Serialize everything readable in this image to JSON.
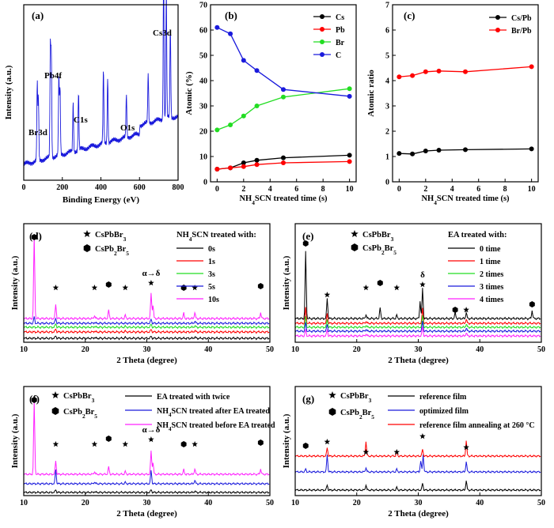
{
  "chart_data": [
    {
      "panel": "(a)",
      "type": "line",
      "xlabel": "Binding Energy (eV)",
      "ylabel": "Intensity (a.u.)",
      "xlim": [
        0,
        800
      ],
      "xticks": [
        0,
        200,
        400,
        600,
        800
      ],
      "line_color": "#1a1adc",
      "annotations": [
        {
          "text": "Cs3d",
          "x": 730
        },
        {
          "text": "Pb4f",
          "x": 140
        },
        {
          "text": "C1s",
          "x": 285
        },
        {
          "text": "O1s",
          "x": 532
        },
        {
          "text": "Br3d",
          "x": 70
        }
      ],
      "peaks": [
        {
          "x": 70,
          "h": 0.44
        },
        {
          "x": 76,
          "h": 0.36
        },
        {
          "x": 138,
          "h": 0.62
        },
        {
          "x": 143,
          "h": 0.58
        },
        {
          "x": 182,
          "h": 0.44
        },
        {
          "x": 188,
          "h": 0.38
        },
        {
          "x": 256,
          "h": 0.28
        },
        {
          "x": 284,
          "h": 0.33
        },
        {
          "x": 413,
          "h": 0.42
        },
        {
          "x": 435,
          "h": 0.38
        },
        {
          "x": 532,
          "h": 0.24
        },
        {
          "x": 645,
          "h": 0.28
        },
        {
          "x": 725,
          "h": 0.84
        },
        {
          "x": 739,
          "h": 0.72
        },
        {
          "x": 760,
          "h": 0.52
        }
      ]
    },
    {
      "panel": "(b)",
      "type": "line",
      "xlabel": "NH₄SCN treated time (s)",
      "ylabel": "Atomic (%)",
      "xlim": [
        -0.5,
        10.5
      ],
      "ylim": [
        0,
        70
      ],
      "xticks": [
        0,
        2,
        4,
        6,
        8,
        10
      ],
      "yticks": [
        0,
        10,
        20,
        30,
        40,
        50,
        60,
        70
      ],
      "x": [
        0,
        1,
        2,
        3,
        5,
        10
      ],
      "series": [
        {
          "name": "Cs",
          "color": "#000000",
          "values": [
            5.0,
            5.5,
            7.5,
            8.5,
            9.5,
            10.5
          ]
        },
        {
          "name": "Pb",
          "color": "#ff0000",
          "values": [
            5.0,
            5.5,
            6.0,
            6.8,
            7.5,
            8.0
          ]
        },
        {
          "name": "Br",
          "color": "#22dd22",
          "values": [
            20.5,
            22.5,
            26.0,
            30.0,
            33.5,
            36.8
          ]
        },
        {
          "name": "C",
          "color": "#1a1adc",
          "values": [
            61.0,
            58.5,
            48.0,
            44.0,
            36.5,
            33.8
          ]
        }
      ],
      "legend": "top-right"
    },
    {
      "panel": "(c)",
      "type": "line",
      "xlabel": "NH₄SCN treated time (s)",
      "ylabel": "Atomic ratio",
      "xlim": [
        -0.5,
        10.5
      ],
      "ylim": [
        0,
        7
      ],
      "xticks": [
        0,
        2,
        4,
        6,
        8,
        10
      ],
      "yticks": [
        0,
        1,
        2,
        3,
        4,
        5,
        6,
        7
      ],
      "x": [
        0,
        1,
        2,
        3,
        5,
        10
      ],
      "series": [
        {
          "name": "Cs/Pb",
          "color": "#000000",
          "values": [
            1.12,
            1.1,
            1.22,
            1.25,
            1.27,
            1.3
          ]
        },
        {
          "name": "Br/Pb",
          "color": "#ff0000",
          "values": [
            4.15,
            4.2,
            4.35,
            4.38,
            4.35,
            4.55
          ]
        }
      ],
      "legend": "top-right"
    },
    {
      "panel": "(d)",
      "type": "line",
      "xlabel": "2 Theta (degree)",
      "ylabel": "Intensity (a.u.)",
      "xlim": [
        10,
        50
      ],
      "xticks": [
        10,
        20,
        30,
        40,
        50
      ],
      "legend_title": "NH₄SCN treated with:",
      "phase_labels": [
        "CsPbBr₃",
        "CsPb₂Br₅"
      ],
      "marker_annotations": [
        {
          "x": 11.7,
          "sym": "hex"
        },
        {
          "x": 15.2,
          "sym": "star"
        },
        {
          "x": 21.5,
          "sym": "star"
        },
        {
          "x": 23.8,
          "sym": "hex"
        },
        {
          "x": 26.5,
          "sym": "star"
        },
        {
          "x": 30.7,
          "sym": "star",
          "text": "α→δ"
        },
        {
          "x": 36.0,
          "sym": "hex"
        },
        {
          "x": 37.8,
          "sym": "star"
        },
        {
          "x": 48.5,
          "sym": "hex"
        }
      ],
      "series": [
        {
          "name": "0s",
          "color": "#000000",
          "peaks": [
            [
              15.2,
              0.25
            ],
            [
              21.5,
              0.1
            ],
            [
              26.5,
              0.08
            ],
            [
              30.7,
              0.2
            ],
            [
              37.8,
              0.15
            ]
          ]
        },
        {
          "name": "1s",
          "color": "#ff0000",
          "peaks": [
            [
              15.2,
              0.3
            ],
            [
              21.5,
              0.1
            ],
            [
              26.5,
              0.08
            ],
            [
              30.7,
              0.25
            ],
            [
              37.8,
              0.15
            ]
          ]
        },
        {
          "name": "3s",
          "color": "#22dd22",
          "peaks": [
            [
              15.2,
              0.35
            ],
            [
              21.5,
              0.1
            ],
            [
              26.5,
              0.08
            ],
            [
              30.7,
              0.3
            ],
            [
              37.8,
              0.15
            ]
          ]
        },
        {
          "name": "5s",
          "color": "#1a1adc",
          "peaks": [
            [
              11.7,
              0.6
            ],
            [
              15.2,
              0.5
            ],
            [
              21.5,
              0.1
            ],
            [
              30.7,
              0.4
            ],
            [
              37.8,
              0.2
            ]
          ]
        },
        {
          "name": "10s",
          "color": "#ff22ff",
          "peaks": [
            [
              11.7,
              8.0
            ],
            [
              15.2,
              1.4
            ],
            [
              21.5,
              0.3
            ],
            [
              23.8,
              0.8
            ],
            [
              26.5,
              0.3
            ],
            [
              30.7,
              2.5
            ],
            [
              31.0,
              1.3
            ],
            [
              36.0,
              0.5
            ],
            [
              37.8,
              0.6
            ],
            [
              48.5,
              0.6
            ]
          ]
        }
      ]
    },
    {
      "panel": "(e)",
      "type": "line",
      "xlabel": "2 Theta (degree)",
      "ylabel": "Intensity (a.u.)",
      "xlim": [
        10,
        50
      ],
      "xticks": [
        10,
        20,
        30,
        40,
        50
      ],
      "legend_title": "EA treated with:",
      "phase_labels": [
        "CsPbBr₃",
        "CsPb₂Br₅"
      ],
      "marker_annotations": [
        {
          "x": 11.7,
          "sym": "hex"
        },
        {
          "x": 15.2,
          "sym": "star"
        },
        {
          "x": 21.5,
          "sym": "star"
        },
        {
          "x": 23.8,
          "sym": "hex"
        },
        {
          "x": 26.5,
          "sym": "star"
        },
        {
          "x": 30.7,
          "sym": "star",
          "text": "δ"
        },
        {
          "x": 36.0,
          "sym": "hex"
        },
        {
          "x": 37.8,
          "sym": "star"
        },
        {
          "x": 48.5,
          "sym": "hex"
        }
      ],
      "series": [
        {
          "name": "0 time",
          "color": "#000000",
          "peaks": [
            [
              11.7,
              6.5
            ],
            [
              15.2,
              2.0
            ],
            [
              21.5,
              0.4
            ],
            [
              23.8,
              1.0
            ],
            [
              26.5,
              0.3
            ],
            [
              30.3,
              1.7
            ],
            [
              30.7,
              3.0
            ],
            [
              36.0,
              0.6
            ],
            [
              37.8,
              0.6
            ],
            [
              48.5,
              0.8
            ]
          ]
        },
        {
          "name": "1 time",
          "color": "#ff0000",
          "peaks": [
            [
              11.7,
              1.5
            ],
            [
              15.2,
              1.0
            ],
            [
              21.5,
              0.2
            ],
            [
              30.7,
              1.5
            ],
            [
              37.8,
              0.4
            ]
          ]
        },
        {
          "name": "2 times",
          "color": "#22dd22",
          "peaks": [
            [
              11.7,
              1.0
            ],
            [
              15.2,
              0.8
            ],
            [
              21.5,
              0.2
            ],
            [
              30.7,
              1.2
            ],
            [
              37.8,
              0.3
            ]
          ]
        },
        {
          "name": "3 times",
          "color": "#1a1adc",
          "peaks": [
            [
              11.7,
              0.8
            ],
            [
              15.2,
              0.7
            ],
            [
              21.5,
              0.2
            ],
            [
              30.7,
              1.0
            ],
            [
              37.8,
              0.3
            ]
          ]
        },
        {
          "name": "4 times",
          "color": "#ff22ff",
          "peaks": [
            [
              11.7,
              0.6
            ],
            [
              15.2,
              0.6
            ],
            [
              21.5,
              0.2
            ],
            [
              30.7,
              0.9
            ],
            [
              37.8,
              0.3
            ]
          ]
        }
      ]
    },
    {
      "panel": "(f)",
      "type": "line",
      "xlabel": "2 Theta (degree)",
      "ylabel": "Intensity (a.u.)",
      "xlim": [
        10,
        50
      ],
      "xticks": [
        10,
        20,
        30,
        40,
        50
      ],
      "phase_labels": [
        "CsPbBr₃",
        "CsPb₂Br₅"
      ],
      "marker_annotations": [
        {
          "x": 11.7,
          "sym": "hex"
        },
        {
          "x": 15.2,
          "sym": "star"
        },
        {
          "x": 21.5,
          "sym": "star"
        },
        {
          "x": 23.8,
          "sym": "hex"
        },
        {
          "x": 26.5,
          "sym": "star"
        },
        {
          "x": 30.7,
          "sym": "star",
          "text": "α→δ"
        },
        {
          "x": 36.0,
          "sym": "hex"
        },
        {
          "x": 37.8,
          "sym": "star"
        },
        {
          "x": 48.5,
          "sym": "hex"
        }
      ],
      "series": [
        {
          "name": "EA treated with twice",
          "color": "#000000",
          "peaks": [
            [
              15.2,
              0.3
            ],
            [
              21.5,
              0.1
            ],
            [
              30.7,
              0.3
            ],
            [
              37.8,
              0.15
            ]
          ]
        },
        {
          "name": "NH₄SCN treated after EA treated",
          "color": "#1a1adc",
          "peaks": [
            [
              15.2,
              1.6
            ],
            [
              21.5,
              0.2
            ],
            [
              26.5,
              0.15
            ],
            [
              30.7,
              1.5
            ],
            [
              37.8,
              0.4
            ]
          ]
        },
        {
          "name": "NH₄SCN treated before EA treated",
          "color": "#ff22ff",
          "peaks": [
            [
              11.7,
              8.0
            ],
            [
              15.2,
              1.5
            ],
            [
              21.5,
              0.3
            ],
            [
              23.8,
              0.8
            ],
            [
              26.5,
              0.3
            ],
            [
              30.7,
              2.6
            ],
            [
              31.0,
              1.3
            ],
            [
              36.0,
              0.5
            ],
            [
              37.8,
              0.6
            ],
            [
              48.5,
              0.6
            ]
          ]
        }
      ]
    },
    {
      "panel": "(g)",
      "type": "line",
      "xlabel": "2 Theta (degree)",
      "ylabel": "Intensity (a.u.)",
      "xlim": [
        10,
        50
      ],
      "xticks": [
        10,
        20,
        30,
        40,
        50
      ],
      "phase_labels": [
        "CsPbBr₃",
        "CsPb₂Br₅"
      ],
      "marker_annotations": [
        {
          "x": 11.7,
          "sym": "hex"
        },
        {
          "x": 15.2,
          "sym": "star"
        },
        {
          "x": 21.5,
          "sym": "star"
        },
        {
          "x": 26.5,
          "sym": "star"
        },
        {
          "x": 30.7,
          "sym": "star"
        },
        {
          "x": 37.8,
          "sym": "star"
        }
      ],
      "series": [
        {
          "name": "reference film",
          "color": "#000000",
          "peaks": [
            [
              15.2,
              0.6
            ],
            [
              21.5,
              0.6
            ],
            [
              26.5,
              0.3
            ],
            [
              30.7,
              0.8
            ],
            [
              37.8,
              1.1
            ]
          ]
        },
        {
          "name": "optimized film",
          "color": "#1a1adc",
          "peaks": [
            [
              11.7,
              0.3
            ],
            [
              15.2,
              2.0
            ],
            [
              21.5,
              0.5
            ],
            [
              26.5,
              0.3
            ],
            [
              30.4,
              1.3
            ],
            [
              30.8,
              2.0
            ],
            [
              37.8,
              1.2
            ]
          ]
        },
        {
          "name": "reference film annealing at 260 °C",
          "color": "#ff0000",
          "peaks": [
            [
              15.2,
              1.0
            ],
            [
              21.5,
              1.7
            ],
            [
              26.5,
              0.5
            ],
            [
              30.7,
              0.8
            ],
            [
              37.8,
              1.8
            ]
          ]
        }
      ]
    }
  ]
}
